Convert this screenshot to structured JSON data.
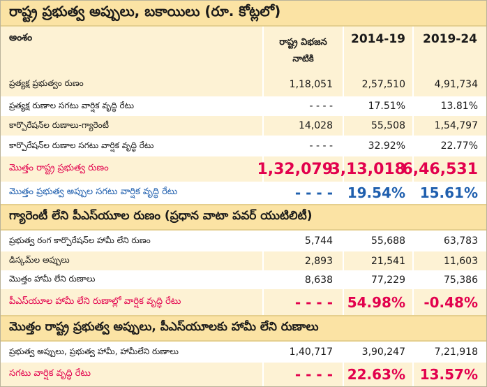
{
  "title": "రాష్ట్ర ప్రభుత్వ అప్పులు, బకాయిలు (రూ. కోట్లలో)",
  "header": {
    "item": "అంశం",
    "col1_line1": "రాష్ట్ర విభజన",
    "col1_line2": "నాటికి",
    "col2": "2014-19",
    "col3": "2019-24"
  },
  "rows_a": [
    {
      "label": "ప్రత్యక్ష ప్రభుత్వం రుణం",
      "v1": "1,18,051",
      "v2": "2,57,510",
      "v3": "4,91,734"
    },
    {
      "label": "ప్రత్యక్ష రుణాల సగటు వార్షిక వృద్ధి రేటు",
      "v1": "- - - -",
      "v2": "17.51%",
      "v3": "13.81%"
    },
    {
      "label": "కార్పొరేషన్‌ల రుణాలు-గ్యారెంటీ",
      "v1": "14,028",
      "v2": "55,508",
      "v3": "1,54,797"
    },
    {
      "label": "కార్పొరేషన్‌ల రుణాల సగటు వార్షిక వృద్ధి రేటు",
      "v1": "- - - -",
      "v2": "32.92%",
      "v3": "22.77%"
    }
  ],
  "total_debt": {
    "label": "మొత్తం రాష్ట్ర ప్రభుత్వ రుణం",
    "v1": "1,32,079",
    "v2": "3,13,018",
    "v3": "6,46,531"
  },
  "avg_growth": {
    "label": "మొత్తం ప్రభుత్వ అప్పుల సగటు వార్షిక వృద్ధి రేటు",
    "v1": "- - - -",
    "v2": "19.54%",
    "v3": "15.61%"
  },
  "section2_title": "గ్యారెంటీ లేని పీఎస్‌యూల రుణం (ప్రధాన వాటా పవర్ యుటిలిటీ)",
  "rows_b": [
    {
      "label": "ప్రభుత్వ రంగ కార్పొరేషన్‌ల హామీ లేని రుణం",
      "v1": "5,744",
      "v2": "55,688",
      "v3": "63,783"
    },
    {
      "label": "డిస్కమ్‌ల అప్పులు",
      "v1": "2,893",
      "v2": "21,541",
      "v3": "11,603"
    },
    {
      "label": "మొత్తం హామీ లేని రుణాలు",
      "v1": "8,638",
      "v2": "77,229",
      "v3": "75,386"
    }
  ],
  "psu_growth": {
    "label": "పీఎస్‌యూల హామీ లేని రుణాల్లో వార్షిక వృద్ధి రేటు",
    "v1": "- - - -",
    "v2": "54.98%",
    "v3": "-0.48%"
  },
  "section3_title": "మొత్తం రాష్ట్ర ప్రభుత్వ అప్పులు, పీఎస్‌యూలకు హామీ లేని రుణాలు",
  "rows_c": [
    {
      "label": "ప్రభుత్వ అప్పులు, ప్రభుత్వ హామీ, హామీలేని రుణాలు",
      "v1": "1,40,717",
      "v2": "3,90,247",
      "v3": "7,21,918"
    }
  ],
  "overall_growth": {
    "label": "సగటు వార్షిక వృద్ధి రేటు",
    "v1": "- - - -",
    "v2": "22.63%",
    "v3": "13.57%"
  },
  "colors": {
    "title_bg": "#fbe3a4",
    "row_shade": "#fdf2d4",
    "highlight_red": "#e2004d",
    "highlight_blue": "#1f5fae"
  }
}
